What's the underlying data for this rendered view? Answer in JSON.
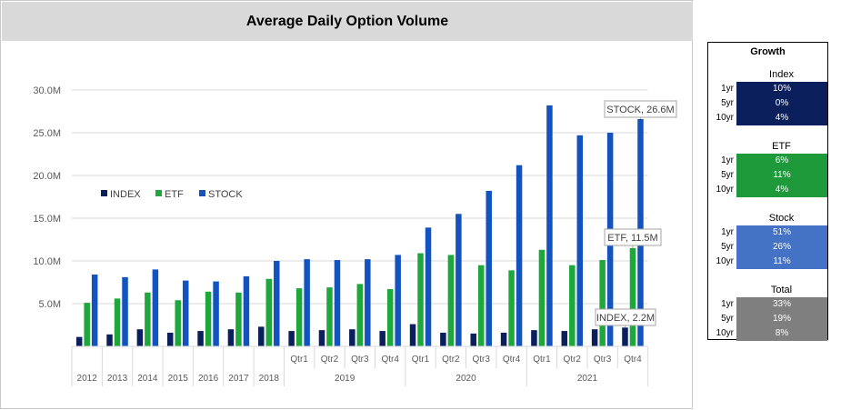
{
  "chart_data": {
    "type": "bar",
    "title": "Average Daily Option Volume",
    "categories": [
      "2012",
      "2013",
      "2014",
      "2015",
      "2016",
      "2017",
      "2018",
      "Qtr1",
      "Qtr2",
      "Qtr3",
      "Qtr4",
      "Qtr1",
      "Qtr2",
      "Qtr3",
      "Qtr4",
      "Qtr1",
      "Qtr2",
      "Qtr3",
      "Qtr4"
    ],
    "category_groups": [
      {
        "label": "2019",
        "span": [
          7,
          10
        ]
      },
      {
        "label": "2020",
        "span": [
          11,
          14
        ]
      },
      {
        "label": "2021",
        "span": [
          15,
          18
        ]
      }
    ],
    "series": [
      {
        "name": "INDEX",
        "color": "#0a1f5c",
        "values": [
          1.1,
          1.4,
          2.0,
          1.6,
          1.8,
          2.0,
          2.3,
          1.8,
          1.9,
          2.0,
          1.8,
          2.6,
          1.6,
          1.5,
          1.6,
          1.9,
          1.8,
          2.0,
          2.2
        ]
      },
      {
        "name": "ETF",
        "color": "#1ea83c",
        "values": [
          5.1,
          5.6,
          6.3,
          5.4,
          6.4,
          6.3,
          7.9,
          6.8,
          6.9,
          7.3,
          6.7,
          10.9,
          10.7,
          9.5,
          8.9,
          11.3,
          9.5,
          10.1,
          11.5
        ]
      },
      {
        "name": "STOCK",
        "color": "#1253c0",
        "values": [
          8.4,
          8.1,
          9.0,
          7.7,
          7.6,
          8.2,
          10.0,
          10.2,
          10.1,
          10.2,
          10.7,
          13.9,
          15.5,
          18.2,
          21.2,
          28.2,
          24.7,
          25.0,
          26.6
        ]
      }
    ],
    "y_ticks": [
      "5.0M",
      "10.0M",
      "15.0M",
      "20.0M",
      "25.0M",
      "30.0M"
    ],
    "ylim": [
      0,
      30
    ],
    "y_unit": "M",
    "grid": true,
    "legend_position": "left-middle",
    "annotations": [
      "STOCK, 26.6M",
      "ETF, 11.5M",
      "INDEX, 2.2M"
    ]
  },
  "growth": {
    "title": "Growth",
    "groups": [
      {
        "name": "Index",
        "color": "#0a1f5c",
        "rows": [
          {
            "label": "1yr",
            "value": "10%"
          },
          {
            "label": "5yr",
            "value": "0%"
          },
          {
            "label": "10yr",
            "value": "4%"
          }
        ]
      },
      {
        "name": "ETF",
        "color": "#1e9a3a",
        "rows": [
          {
            "label": "1yr",
            "value": "6%"
          },
          {
            "label": "5yr",
            "value": "11%"
          },
          {
            "label": "10yr",
            "value": "4%"
          }
        ]
      },
      {
        "name": "Stock",
        "color": "#4472c4",
        "rows": [
          {
            "label": "1yr",
            "value": "51%"
          },
          {
            "label": "5yr",
            "value": "26%"
          },
          {
            "label": "10yr",
            "value": "11%"
          }
        ]
      },
      {
        "name": "Total",
        "color": "#7f7f7f",
        "rows": [
          {
            "label": "1yr",
            "value": "33%"
          },
          {
            "label": "5yr",
            "value": "19%"
          },
          {
            "label": "10yr",
            "value": "8%"
          }
        ]
      }
    ]
  }
}
